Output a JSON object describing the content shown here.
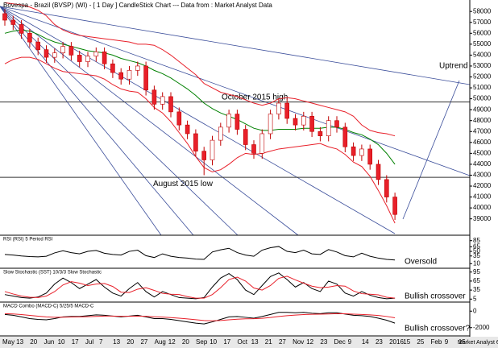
{
  "chart_data": {
    "type": "candlestick",
    "title": "Bovespa - Brazil (BVSP) (WI) -  [ 1 Day ] CandleStick Chart --- Data from : Market Analyst Data",
    "ylim": [
      37500,
      58900
    ],
    "yticks": [
      39000,
      40000,
      41000,
      42000,
      43000,
      44000,
      45000,
      46000,
      47000,
      48000,
      49000,
      50000,
      51000,
      52000,
      53000,
      54000,
      55000,
      56000,
      57000,
      58000
    ],
    "up_color": "#ffffff",
    "down_color": "#e8202a",
    "wick_color": "#c00000",
    "candles": {
      "open": [
        57800,
        57200,
        56800,
        56000,
        55200,
        54500,
        53800,
        54200,
        54800,
        54000,
        53400,
        53900,
        54300,
        53200,
        52400,
        51800,
        52600,
        53000,
        50800,
        49500,
        50200,
        48800,
        47600,
        46800,
        45200,
        44400,
        46200,
        47400,
        48600,
        47200,
        45800,
        45000,
        46800,
        48600,
        49600,
        48200,
        47600,
        48400,
        47000,
        46600,
        48000,
        47400,
        45600,
        44800,
        45400,
        44000,
        42600,
        41000
      ],
      "high": [
        58200,
        57600,
        57200,
        56400,
        55600,
        54900,
        54600,
        55200,
        55200,
        54400,
        54300,
        54700,
        54700,
        53600,
        52800,
        53000,
        53400,
        53400,
        51200,
        50600,
        50600,
        49200,
        48000,
        47200,
        45600,
        46600,
        47800,
        49000,
        49000,
        47600,
        46200,
        47200,
        49000,
        50000,
        50000,
        48600,
        48800,
        48800,
        47400,
        48400,
        48400,
        47800,
        46000,
        45800,
        45800,
        44400,
        43000,
        41400
      ],
      "low": [
        56700,
        56300,
        55500,
        54700,
        54000,
        53300,
        53300,
        53700,
        53500,
        52900,
        52900,
        53400,
        52700,
        51900,
        51300,
        51300,
        52100,
        50300,
        49000,
        49000,
        48300,
        47100,
        46300,
        44700,
        43000,
        43900,
        45700,
        46900,
        46700,
        45300,
        44500,
        44500,
        46300,
        48100,
        47700,
        47100,
        47100,
        46500,
        46100,
        46100,
        46900,
        45100,
        44300,
        44300,
        43500,
        42100,
        40500,
        38900
      ],
      "close": [
        57200,
        56800,
        56000,
        55200,
        54500,
        53800,
        54200,
        54800,
        54000,
        53400,
        53900,
        54300,
        53200,
        52400,
        51800,
        52600,
        53000,
        50800,
        49500,
        50200,
        48800,
        47600,
        46800,
        45200,
        44400,
        46200,
        47400,
        48600,
        47200,
        45800,
        45000,
        46800,
        48600,
        49600,
        48200,
        47600,
        48400,
        47000,
        46600,
        48000,
        47400,
        45600,
        44800,
        45400,
        44000,
        42600,
        41000,
        39400
      ]
    },
    "overlays": [
      {
        "color": "#008000",
        "values": [
          56000,
          56200,
          56300,
          56200,
          55900,
          55500,
          55200,
          55000,
          54800,
          54600,
          54400,
          54300,
          54200,
          54000,
          53700,
          53500,
          53300,
          53000,
          52600,
          52300,
          51900,
          51400,
          50900,
          50300,
          49600,
          49100,
          48700,
          48400,
          48100,
          47700,
          47300,
          47100,
          47100,
          47200,
          47200,
          47200,
          47300,
          47300,
          47300,
          47400,
          47400,
          47200,
          46900,
          46700,
          46300,
          45800,
          45000,
          44000
        ]
      },
      {
        "color": "#e8202a",
        "values": [
          58800,
          58700,
          58600,
          58400,
          58100,
          57600,
          56800,
          56300,
          56000,
          55800,
          55700,
          55600,
          55500,
          55400,
          55300,
          55200,
          55000,
          55000,
          54900,
          54500,
          54000,
          53400,
          52800,
          52200,
          51400,
          51000,
          50600,
          50400,
          50200,
          49900,
          49600,
          49400,
          49600,
          50000,
          50100,
          50000,
          49800,
          49600,
          49400,
          49200,
          49000,
          48800,
          48400,
          47600,
          47100,
          46900,
          46800,
          46600
        ]
      },
      {
        "color": "#e8202a",
        "values": [
          53200,
          53600,
          53800,
          53800,
          53600,
          53200,
          52800,
          52500,
          52400,
          52300,
          52200,
          52100,
          51800,
          51300,
          50900,
          50700,
          50600,
          50000,
          49200,
          48700,
          47900,
          46900,
          45900,
          44700,
          43700,
          43300,
          43500,
          44000,
          44600,
          45000,
          44900,
          45000,
          45200,
          45400,
          45500,
          45600,
          45700,
          45800,
          45900,
          45600,
          45400,
          44900,
          44200,
          43800,
          42900,
          41600,
          40200,
          38600
        ]
      }
    ],
    "levels": [
      {
        "label": "October 2015 high",
        "value": 49700
      },
      {
        "label": "August 2015 low",
        "value": 42800
      }
    ],
    "annotations": [
      "Uptrend",
      "Oversold",
      "Bullish crossover",
      "Bullish crossover?"
    ],
    "panels": [
      {
        "title": "RSI (RSI) 5 Period RSI",
        "ylim": [
          -5,
          100
        ],
        "yticks": [
          85,
          65,
          50,
          35,
          10
        ],
        "series": [
          {
            "color": "#000000",
            "values": [
              40,
              38,
              35,
              33,
              32,
              34,
              45,
              52,
              46,
              42,
              50,
              53,
              44,
              40,
              38,
              50,
              54,
              36,
              30,
              42,
              34,
              30,
              28,
              25,
              24,
              48,
              55,
              60,
              46,
              38,
              34,
              54,
              62,
              66,
              50,
              46,
              54,
              42,
              40,
              56,
              48,
              36,
              32,
              44,
              34,
              28,
              24,
              22
            ]
          }
        ]
      },
      {
        "title": "Slow Stochastic (SST) 10/3/3 Slow Stochastic",
        "ylim": [
          -5,
          105
        ],
        "yticks": [
          95,
          65,
          35,
          5
        ],
        "series": [
          {
            "color": "#000000",
            "values": [
              20,
              15,
              10,
              8,
              12,
              25,
              55,
              75,
              60,
              40,
              55,
              70,
              45,
              25,
              15,
              40,
              60,
              30,
              12,
              30,
              20,
              10,
              8,
              6,
              10,
              45,
              75,
              90,
              70,
              35,
              20,
              50,
              80,
              92,
              70,
              45,
              60,
              40,
              30,
              65,
              55,
              25,
              15,
              30,
              18,
              10,
              6,
              8
            ]
          },
          {
            "color": "#e8202a",
            "values": [
              30,
              22,
              15,
              11,
              10,
              15,
              30,
              52,
              63,
              58,
              50,
              55,
              57,
              47,
              28,
              27,
              38,
              43,
              34,
              24,
              21,
              20,
              13,
              8,
              8,
              20,
              43,
              70,
              78,
              65,
              42,
              35,
              50,
              74,
              81,
              69,
              58,
              48,
              43,
              45,
              50,
              48,
              32,
              23,
              21,
              19,
              11,
              8
            ]
          }
        ]
      },
      {
        "title": "MACD Combo (MACD-C) 5/25/5 MACD-C",
        "ylim": [
          -3000,
          1000
        ],
        "yticks": [
          0,
          -2000
        ],
        "series": [
          {
            "color": "#000000",
            "values": [
              -400,
              -500,
              -700,
              -900,
              -1000,
              -1050,
              -900,
              -700,
              -650,
              -650,
              -550,
              -450,
              -500,
              -600,
              -700,
              -600,
              -500,
              -700,
              -900,
              -900,
              -1000,
              -1150,
              -1300,
              -1450,
              -1550,
              -1300,
              -1000,
              -700,
              -650,
              -750,
              -850,
              -650,
              -400,
              -150,
              -150,
              -200,
              -150,
              -250,
              -300,
              -200,
              -200,
              -350,
              -500,
              -550,
              -650,
              -850,
              -1100,
              -1450
            ]
          },
          {
            "color": "#e8202a",
            "values": [
              -300,
              -340,
              -410,
              -510,
              -610,
              -700,
              -740,
              -730,
              -710,
              -700,
              -670,
              -630,
              -600,
              -600,
              -620,
              -620,
              -600,
              -620,
              -680,
              -720,
              -780,
              -850,
              -940,
              -1040,
              -1140,
              -1170,
              -1140,
              -1050,
              -970,
              -930,
              -910,
              -860,
              -770,
              -650,
              -550,
              -480,
              -410,
              -380,
              -370,
              -340,
              -310,
              -320,
              -360,
              -400,
              -450,
              -530,
              -640,
              -800
            ]
          }
        ]
      }
    ],
    "x_labels": [
      "May",
      "13",
      "20",
      "Jun",
      "10",
      "17",
      "Jul",
      "7",
      "13",
      "20",
      "27",
      "Aug",
      "12",
      "20",
      "Sep",
      "10",
      "17",
      "Oct",
      "13",
      "21",
      "27",
      "Nov",
      "12",
      "23",
      "Dec",
      "9",
      "14",
      "23",
      "2016",
      "15",
      "25",
      "Feb",
      "9",
      "15"
    ],
    "footer": "Market Analyst 6"
  }
}
